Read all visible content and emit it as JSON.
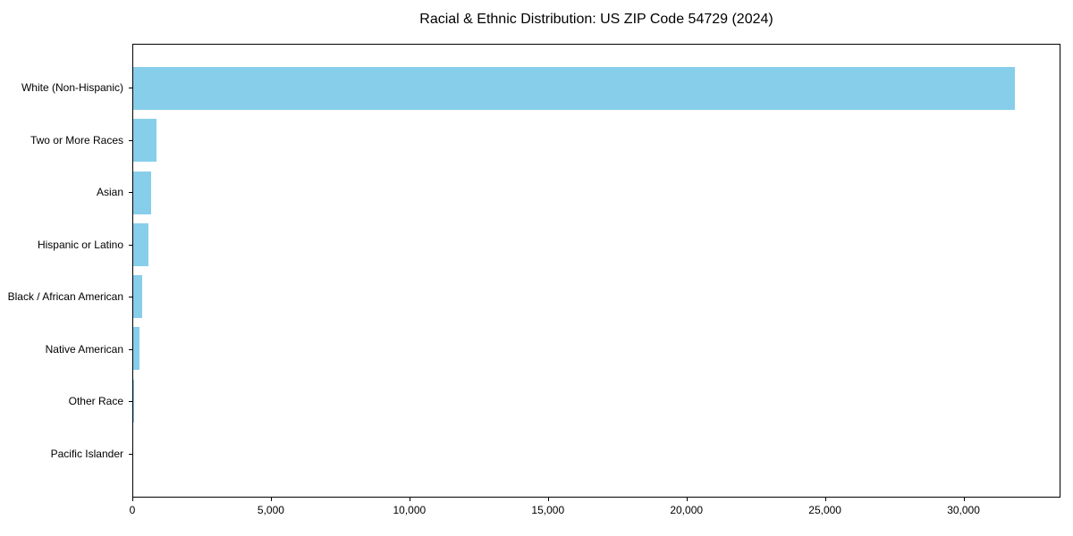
{
  "title": "Racial & Ethnic Distribution: US ZIP Code 54729 (2024)",
  "chart_data": {
    "type": "bar",
    "orientation": "horizontal",
    "title": "Racial & Ethnic Distribution: US ZIP Code 54729 (2024)",
    "categories": [
      "White (Non-Hispanic)",
      "Two or More Races",
      "Asian",
      "Hispanic or Latino",
      "Black / African American",
      "Native American",
      "Other Race",
      "Pacific Islander"
    ],
    "values": [
      31870,
      840,
      650,
      550,
      330,
      225,
      25,
      0
    ],
    "xlabel": "",
    "ylabel": "",
    "xlim": [
      0,
      33500
    ],
    "xticks": [
      0,
      5000,
      10000,
      15000,
      20000,
      25000,
      30000
    ],
    "xtick_labels": [
      "0",
      "5,000",
      "10,000",
      "15,000",
      "20,000",
      "25,000",
      "30,000"
    ],
    "bar_color": "#87CEEB",
    "axis_color": "#000000",
    "background_color": "#ffffff",
    "grid": false,
    "legend": null
  }
}
